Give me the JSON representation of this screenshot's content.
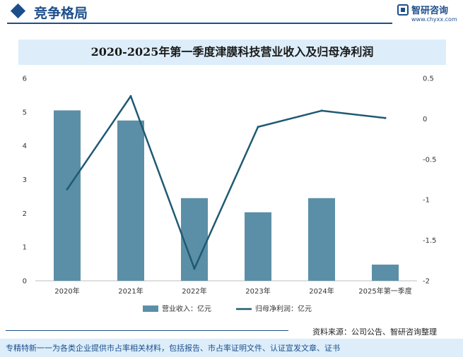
{
  "header": {
    "section_title": "竞争格局",
    "logo_name": "智研咨询",
    "logo_url": "www.chyxx.com"
  },
  "colors": {
    "brand": "#1d4e8c",
    "bar": "#5b8fa8",
    "line": "#1f5a73",
    "band": "#ddeefa"
  },
  "chart_data": {
    "type": "bar",
    "title": "2020-2025年第一季度津膜科技营业收入及归母净利润",
    "categories": [
      "2020年",
      "2021年",
      "2022年",
      "2023年",
      "2024年",
      "2025年第一季度"
    ],
    "series": [
      {
        "name": "营业收入：亿元",
        "type": "bar",
        "axis": "left",
        "values": [
          5.05,
          4.75,
          2.45,
          2.03,
          2.45,
          0.48
        ]
      },
      {
        "name": "归母净利润：亿元",
        "type": "line",
        "axis": "right",
        "values": [
          -0.87,
          0.28,
          -1.85,
          -0.1,
          0.1,
          0.01
        ]
      }
    ],
    "y_left": {
      "min": 0,
      "max": 6,
      "ticks": [
        "0",
        "1",
        "2",
        "3",
        "4",
        "5",
        "6"
      ]
    },
    "y_right": {
      "min": -2,
      "max": 0.5,
      "ticks": [
        "0.5",
        "0",
        "-0.5",
        "-1",
        "-1.5",
        "-2"
      ]
    },
    "legend": "bottom-center",
    "grid": false
  },
  "footer": {
    "source": "资料来源：公司公告、智研咨询整理",
    "tagline": "专精特新一一为各类企业提供市占率相关材料，包括报告、市占率证明文件、认证宣发文章、证书"
  }
}
